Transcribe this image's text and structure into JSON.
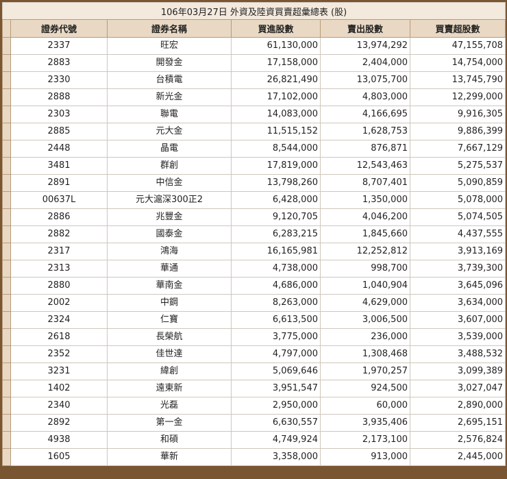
{
  "report": {
    "title": "106年03月27日 外資及陸資買賣超彙總表 (股)",
    "headers": [
      "證券代號",
      "證券名稱",
      "買進股數",
      "賣出股數",
      "買賣超股數"
    ],
    "rows": [
      [
        "2337",
        "旺宏",
        "61,130,000",
        "13,974,292",
        "47,155,708"
      ],
      [
        "2883",
        "開發金",
        "17,158,000",
        "2,404,000",
        "14,754,000"
      ],
      [
        "2330",
        "台積電",
        "26,821,490",
        "13,075,700",
        "13,745,790"
      ],
      [
        "2888",
        "新光金",
        "17,102,000",
        "4,803,000",
        "12,299,000"
      ],
      [
        "2303",
        "聯電",
        "14,083,000",
        "4,166,695",
        "9,916,305"
      ],
      [
        "2885",
        "元大金",
        "11,515,152",
        "1,628,753",
        "9,886,399"
      ],
      [
        "2448",
        "晶電",
        "8,544,000",
        "876,871",
        "7,667,129"
      ],
      [
        "3481",
        "群創",
        "17,819,000",
        "12,543,463",
        "5,275,537"
      ],
      [
        "2891",
        "中信金",
        "13,798,260",
        "8,707,401",
        "5,090,859"
      ],
      [
        "00637L",
        "元大滬深300正2",
        "6,428,000",
        "1,350,000",
        "5,078,000"
      ],
      [
        "2886",
        "兆豐金",
        "9,120,705",
        "4,046,200",
        "5,074,505"
      ],
      [
        "2882",
        "國泰金",
        "6,283,215",
        "1,845,660",
        "4,437,555"
      ],
      [
        "2317",
        "鴻海",
        "16,165,981",
        "12,252,812",
        "3,913,169"
      ],
      [
        "2313",
        "華通",
        "4,738,000",
        "998,700",
        "3,739,300"
      ],
      [
        "2880",
        "華南金",
        "4,686,000",
        "1,040,904",
        "3,645,096"
      ],
      [
        "2002",
        "中鋼",
        "8,263,000",
        "4,629,000",
        "3,634,000"
      ],
      [
        "2324",
        "仁寶",
        "6,613,500",
        "3,006,500",
        "3,607,000"
      ],
      [
        "2618",
        "長榮航",
        "3,775,000",
        "236,000",
        "3,539,000"
      ],
      [
        "2352",
        "佳世達",
        "4,797,000",
        "1,308,468",
        "3,488,532"
      ],
      [
        "3231",
        "緯創",
        "5,069,646",
        "1,970,257",
        "3,099,389"
      ],
      [
        "1402",
        "遠東新",
        "3,951,547",
        "924,500",
        "3,027,047"
      ],
      [
        "2340",
        "光磊",
        "2,950,000",
        "60,000",
        "2,890,000"
      ],
      [
        "2892",
        "第一金",
        "6,630,557",
        "3,935,406",
        "2,695,151"
      ],
      [
        "4938",
        "和碩",
        "4,749,924",
        "2,173,100",
        "2,576,824"
      ],
      [
        "1605",
        "華新",
        "3,358,000",
        "913,000",
        "2,445,000"
      ]
    ]
  }
}
